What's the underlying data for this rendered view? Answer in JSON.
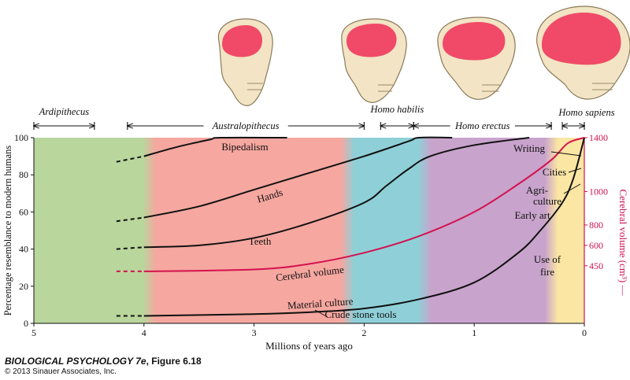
{
  "chart_data": {
    "type": "line",
    "xlabel": "Millions of years ago",
    "ylabel": "Percentage resemblance to modern humans",
    "y2label": "Cerebral volume (cm³)",
    "xlim": [
      5,
      0
    ],
    "ylim": [
      0,
      100
    ],
    "x_ticks": [
      "5",
      "4",
      "3",
      "2",
      "1",
      "0"
    ],
    "y_ticks": [
      "0",
      "20",
      "40",
      "60",
      "80",
      "100"
    ],
    "y2_ticks": [
      "450",
      "600",
      "800",
      "1000",
      "1400"
    ],
    "y2_tick_positions_pct": [
      31,
      42,
      53,
      71,
      100
    ],
    "colors": {
      "cerebral": "#d3124f",
      "axis2": "#d3124f",
      "lines": "#111111"
    },
    "background_bands": [
      {
        "from": 5.0,
        "to": 3.95,
        "color": "#b9d69c"
      },
      {
        "from": 3.95,
        "to": 2.15,
        "color": "#f6a7a0"
      },
      {
        "from": 2.15,
        "to": 1.45,
        "color": "#8fd0d8"
      },
      {
        "from": 1.45,
        "to": 0.3,
        "color": "#c8a3cc"
      },
      {
        "from": 0.3,
        "to": 0.0,
        "color": "#fbe6a3"
      }
    ],
    "series": [
      {
        "name": "Bipedalism",
        "dashed_before": 4.0,
        "color": "#111111",
        "x": [
          4.25,
          4.0,
          3.7,
          3.4,
          3.3,
          2.7
        ],
        "y": [
          87,
          90,
          95,
          99,
          100,
          100
        ]
      },
      {
        "name": "Hands",
        "dashed_before": 4.0,
        "color": "#111111",
        "x": [
          4.25,
          4.0,
          3.5,
          3.0,
          2.5,
          2.0,
          1.6,
          1.5,
          1.2
        ],
        "y": [
          55,
          57,
          63,
          72,
          81,
          90,
          98,
          100,
          100
        ]
      },
      {
        "name": "Teeth",
        "dashed_before": 4.0,
        "color": "#111111",
        "x": [
          4.25,
          4.0,
          3.5,
          3.0,
          2.5,
          2.0,
          1.8,
          1.6,
          1.4,
          1.0,
          0.5
        ],
        "y": [
          40,
          41,
          42,
          46,
          54,
          65,
          74,
          83,
          90,
          96,
          100
        ]
      },
      {
        "name": "Cerebral volume",
        "dashed_before": 4.0,
        "color": "#d3124f",
        "x": [
          4.25,
          4.0,
          3.0,
          2.5,
          2.0,
          1.5,
          1.0,
          0.6,
          0.3,
          0.15,
          0.0
        ],
        "y": [
          28,
          28,
          29,
          32,
          38,
          47,
          60,
          75,
          88,
          97,
          100
        ]
      },
      {
        "name": "Material culture",
        "dashed_before": 4.0,
        "color": "#111111",
        "x": [
          4.25,
          4.0,
          3.0,
          2.5,
          2.0,
          1.5,
          1.0,
          0.6,
          0.4,
          0.2,
          0.1,
          0.0
        ],
        "y": [
          4,
          4,
          5,
          6,
          8,
          13,
          22,
          38,
          50,
          65,
          78,
          100
        ]
      }
    ],
    "annotations": [
      "Bipedalism",
      "Hands",
      "Teeth",
      "Cerebral volume",
      "Material culture",
      "Crude stone tools",
      "Writing",
      "Cities",
      "Agri-",
      "culture",
      "Early art",
      "Use of",
      "fire"
    ],
    "genera": [
      {
        "name": "Ardipithecus",
        "from": 5.0,
        "to": 4.45
      },
      {
        "name": "Australopithecus",
        "from": 4.15,
        "to": 2.0
      },
      {
        "name": "Homo habilis",
        "from": 1.85,
        "to": 1.55
      },
      {
        "name": "Homo erectus",
        "from": 1.55,
        "to": 0.3
      },
      {
        "name": "Homo sapiens",
        "from": 0.2,
        "to": 0.0
      }
    ]
  },
  "caption": {
    "book": "BIOLOGICAL PSYCHOLOGY 7e",
    "figure": ", Figure 6.18",
    "copyright": "© 2013 Sinauer Associates, Inc."
  }
}
